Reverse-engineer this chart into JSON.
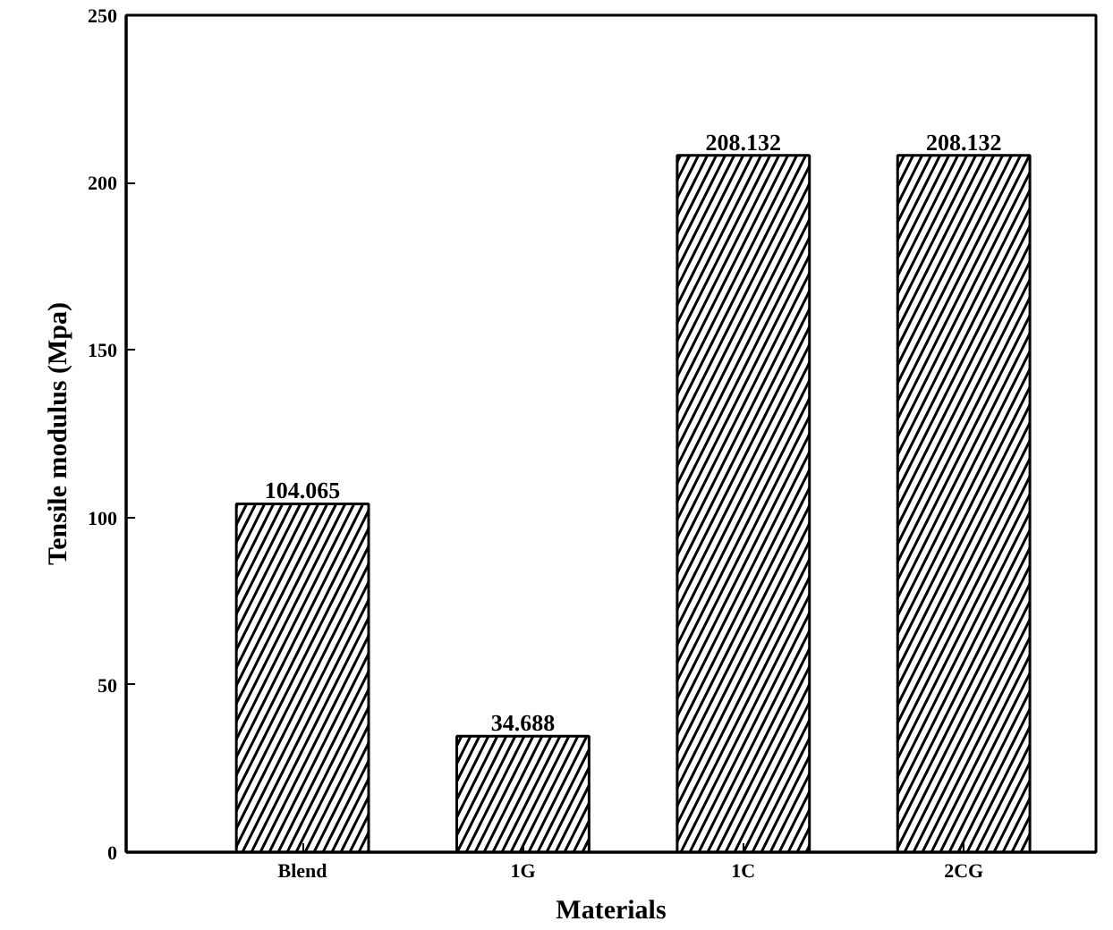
{
  "chart_data": {
    "type": "bar",
    "xlabel": "Materials",
    "ylabel": "Tensile modulus (Mpa)",
    "categories": [
      "Blend",
      "1G",
      "1C",
      "2CG"
    ],
    "values": [
      104.065,
      34.688,
      208.132,
      208.132
    ],
    "color": "#000000",
    "value_labels": [
      "104.065",
      "34.688",
      "208.132",
      "208.132"
    ],
    "ylim": [
      0,
      250
    ],
    "yticks": [
      0,
      50,
      100,
      150,
      200,
      250
    ],
    "grid": false
  }
}
